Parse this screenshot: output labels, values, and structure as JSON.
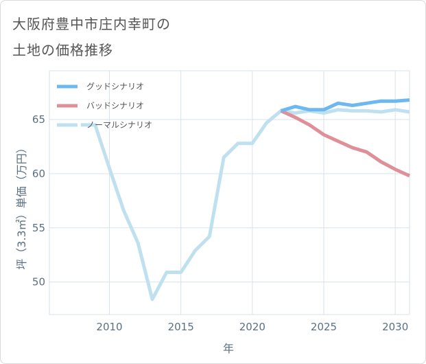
{
  "chart_data": {
    "type": "line",
    "title_line1": "大阪府豊中市庄内幸町の",
    "title_line2": "土地の価格推移",
    "xlabel": "年",
    "ylabel": "坪（3.3㎡）単価（万円）",
    "xlim": [
      2005.8,
      2031
    ],
    "ylim": [
      47,
      69.5
    ],
    "xticks": [
      2010,
      2015,
      2020,
      2025,
      2030
    ],
    "yticks": [
      50,
      55,
      60,
      65
    ],
    "series": [
      {
        "name": "グッドシナリオ",
        "color": "#6cb8ef",
        "x": [
          2022,
          2023,
          2024,
          2025,
          2026,
          2027,
          2028,
          2029,
          2030,
          2031
        ],
        "values": [
          65.8,
          66.2,
          65.9,
          65.9,
          66.5,
          66.3,
          66.5,
          66.7,
          66.7,
          66.8
        ]
      },
      {
        "name": "バッドシナリオ",
        "color": "#df8f97",
        "x": [
          2022,
          2023,
          2024,
          2025,
          2026,
          2027,
          2028,
          2029,
          2030,
          2031
        ],
        "values": [
          65.8,
          65.2,
          64.5,
          63.6,
          63.0,
          62.4,
          62.0,
          61.1,
          60.4,
          59.8
        ]
      },
      {
        "name": "ノーマルシナリオ",
        "color": "#bfe0ee",
        "x": [
          2008,
          2009,
          2010,
          2011,
          2012,
          2013,
          2014,
          2015,
          2016,
          2017,
          2018,
          2019,
          2020,
          2021,
          2022,
          2023,
          2024,
          2025,
          2026,
          2027,
          2028,
          2029,
          2030,
          2031
        ],
        "values": [
          64.5,
          64.5,
          60.5,
          56.6,
          53.6,
          48.4,
          50.9,
          50.9,
          52.9,
          54.2,
          61.5,
          62.8,
          62.8,
          64.7,
          65.8,
          65.6,
          65.8,
          65.6,
          65.9,
          65.8,
          65.8,
          65.7,
          65.9,
          65.7
        ]
      }
    ]
  }
}
